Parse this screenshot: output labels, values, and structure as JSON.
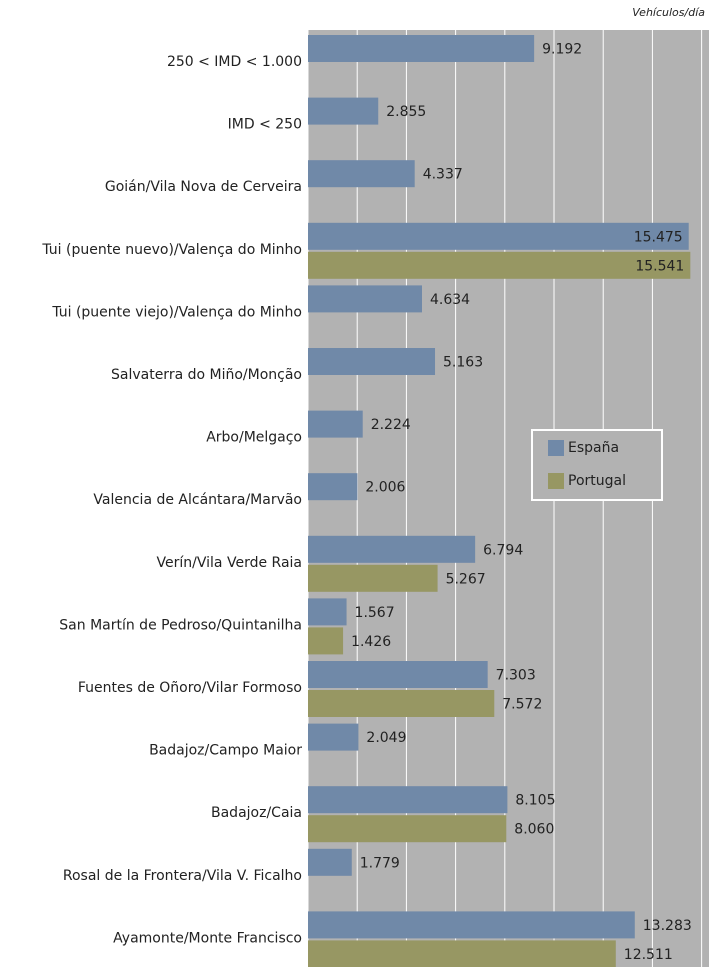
{
  "chart_data": {
    "type": "bar",
    "orientation": "horizontal",
    "unit_label": "Vehículos/día",
    "categories": [
      "250 < IMD < 1.000",
      "IMD < 250",
      "Goián/Vila Nova de Cerveira",
      "Tui (puente nuevo)/Valença do Minho",
      "Tui (puente viejo)/Valença do Minho",
      "Salvaterra do Miño/Monção",
      "Arbo/Melgaço",
      "Valencia de Alcántara/Marvão",
      "Verín/Vila Verde Raia",
      "San Martín de Pedroso/Quintanilha",
      "Fuentes de Oñoro/Vilar Formoso",
      "Badajoz/Campo Maior",
      "Badajoz/Caia",
      "Rosal de la Frontera/Vila V. Ficalho",
      "Ayamonte/Monte Francisco"
    ],
    "series": [
      {
        "name": "España",
        "color": "#7089a8",
        "values": [
          9192,
          2855,
          4337,
          15475,
          4634,
          5163,
          2224,
          2006,
          6794,
          1567,
          7303,
          2049,
          8105,
          1779,
          13283
        ],
        "value_labels": [
          "9.192",
          "2.855",
          "4.337",
          "15.475",
          "4.634",
          "5.163",
          "2.224",
          "2.006",
          "6.794",
          "1.567",
          "7.303",
          "2.049",
          "8.105",
          "1.779",
          "13.283"
        ]
      },
      {
        "name": "Portugal",
        "color": "#979763",
        "values": [
          null,
          null,
          null,
          15541,
          null,
          null,
          null,
          null,
          5267,
          1426,
          7572,
          null,
          8060,
          null,
          12511
        ],
        "value_labels": [
          null,
          null,
          null,
          "15.541",
          null,
          null,
          null,
          null,
          "5.267",
          "1.426",
          "7.572",
          null,
          "8.060",
          null,
          "12.511"
        ]
      }
    ],
    "xlim": [
      0,
      16300
    ],
    "xticks": [
      0,
      2000,
      4000,
      6000,
      8000,
      10000,
      12000,
      14000,
      16000
    ],
    "grid": true,
    "legend": "right"
  }
}
